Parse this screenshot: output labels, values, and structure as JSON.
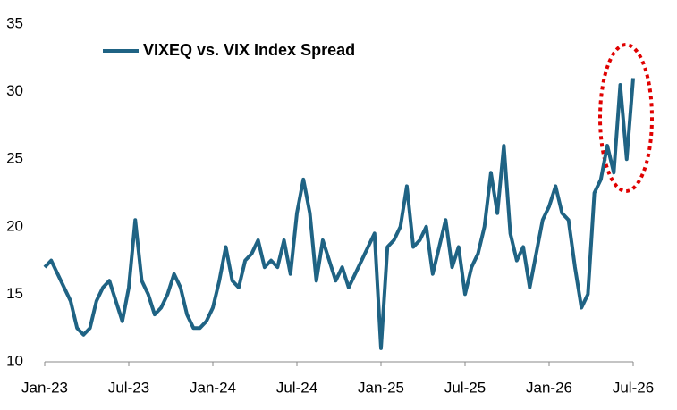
{
  "chart_data": {
    "type": "line",
    "categories": [
      "Jan-23",
      null,
      null,
      null,
      null,
      null,
      null,
      null,
      null,
      null,
      null,
      null,
      null,
      "Jul-23",
      null,
      null,
      null,
      null,
      null,
      null,
      null,
      null,
      null,
      null,
      null,
      null,
      "Jan-24",
      null,
      null,
      null,
      null,
      null,
      null,
      null,
      null,
      null,
      null,
      null,
      null,
      "Jul-24",
      null,
      null,
      null,
      null,
      null,
      null,
      null,
      null,
      null,
      null,
      null,
      null,
      "Jan-25",
      null,
      null,
      null,
      null,
      null,
      null,
      null,
      null,
      null,
      null,
      null,
      null,
      "Jul-25",
      null,
      null,
      null,
      null,
      null,
      null,
      null,
      null,
      null,
      null,
      null,
      null,
      "Jan-26",
      null,
      null,
      null,
      null,
      null,
      null,
      null,
      null,
      null,
      null,
      null,
      null,
      "Jul-26"
    ],
    "series": [
      {
        "name": "VIXEQ vs. VIX Index Spread",
        "color": "#1f6384",
        "values": [
          17,
          17.5,
          16.5,
          15.5,
          14.5,
          12.5,
          12,
          12.5,
          14.5,
          15.5,
          16,
          14.5,
          13,
          15.5,
          20.5,
          16,
          15,
          13.5,
          14,
          15,
          16.5,
          15.5,
          13.5,
          12.5,
          12.5,
          13,
          14,
          16,
          18.5,
          16,
          15.5,
          17.5,
          18,
          19,
          17,
          17.5,
          17,
          19,
          16.5,
          21,
          23.5,
          21,
          16,
          19,
          17.5,
          16,
          17,
          15.5,
          16.5,
          17.5,
          18.5,
          19.5,
          11,
          18.5,
          19,
          20,
          23,
          18.5,
          19,
          20,
          16.5,
          18.5,
          20.5,
          17,
          18.5,
          15,
          17,
          18,
          20,
          24,
          21,
          26,
          19.5,
          17.5,
          18.5,
          15.5,
          18,
          20.5,
          21.5,
          23,
          21,
          20.5,
          17,
          14,
          15,
          22.5,
          23.5,
          26,
          24,
          30.5,
          25,
          31
        ]
      }
    ],
    "ylim": [
      10,
      35
    ],
    "yticks": [
      10,
      15,
      20,
      25,
      30,
      35
    ],
    "grid": false,
    "legend": "top-left"
  }
}
